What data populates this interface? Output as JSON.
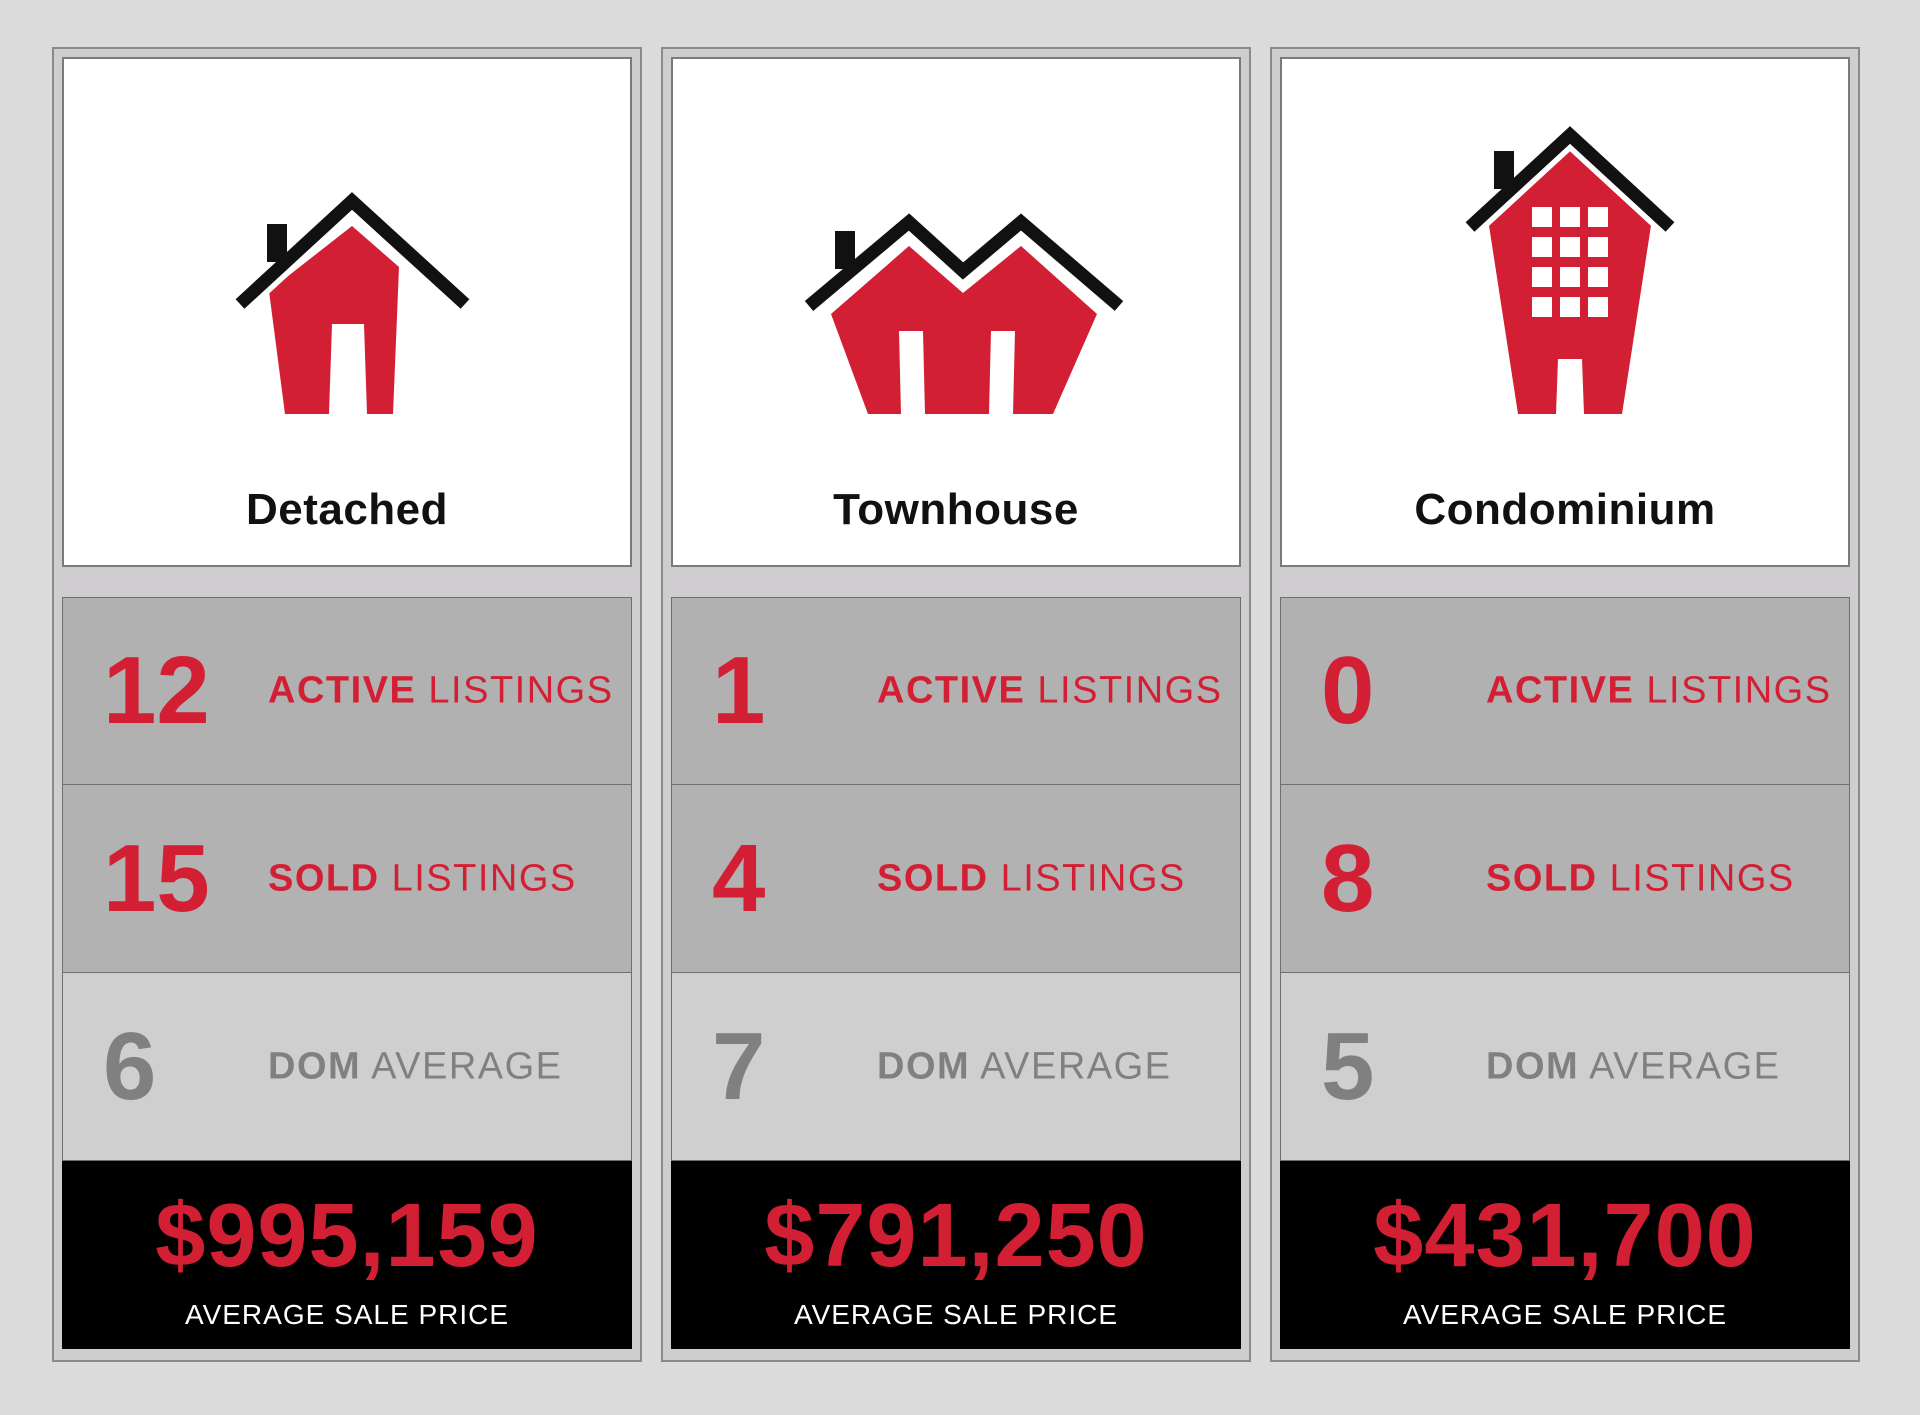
{
  "colors": {
    "accent": "#d21f33",
    "muted": "#808080",
    "dark": "#111111"
  },
  "cards": [
    {
      "icon": "detached-house-icon",
      "type": "Detached",
      "active": {
        "value": "12",
        "strong": "ACTIVE",
        "rest": " LISTINGS"
      },
      "sold": {
        "value": "15",
        "strong": "SOLD",
        "rest": " LISTINGS"
      },
      "dom": {
        "value": "6",
        "strong": "DOM",
        "rest": " AVERAGE"
      },
      "price": {
        "value": "$995,159",
        "label": "AVERAGE SALE PRICE"
      }
    },
    {
      "icon": "townhouse-icon",
      "type": "Townhouse",
      "active": {
        "value": "1",
        "strong": "ACTIVE",
        "rest": " LISTINGS"
      },
      "sold": {
        "value": "4",
        "strong": "SOLD",
        "rest": " LISTINGS"
      },
      "dom": {
        "value": "7",
        "strong": "DOM",
        "rest": " AVERAGE"
      },
      "price": {
        "value": "$791,250",
        "label": "AVERAGE SALE PRICE"
      }
    },
    {
      "icon": "condominium-building-icon",
      "type": "Condominium",
      "active": {
        "value": "0",
        "strong": "ACTIVE",
        "rest": " LISTINGS"
      },
      "sold": {
        "value": "8",
        "strong": "SOLD",
        "rest": " LISTINGS"
      },
      "dom": {
        "value": "5",
        "strong": "DOM",
        "rest": " AVERAGE"
      },
      "price": {
        "value": "$431,700",
        "label": "AVERAGE SALE PRICE"
      }
    }
  ]
}
